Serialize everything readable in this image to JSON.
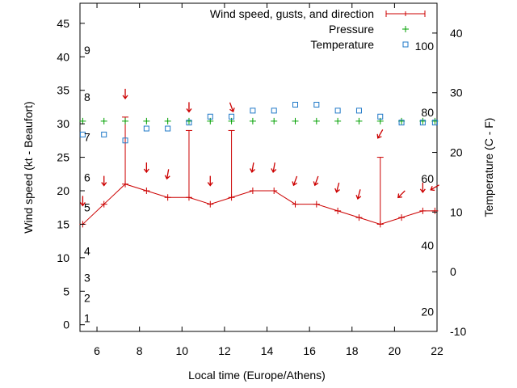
{
  "chart_data": {
    "type": "line",
    "title": "",
    "xlabel": "Local time (Europe/Athens)",
    "ylabel_left": "Wind speed (kt - Beaufort)",
    "ylabel_right": "Temperature (C - F)",
    "x_range": [
      5.2,
      22
    ],
    "y_left_range": [
      -1,
      48
    ],
    "y_right_range": [
      -10,
      45
    ],
    "x_ticks": [
      6,
      8,
      10,
      12,
      14,
      16,
      18,
      20,
      22
    ],
    "y_left_ticks": [
      0,
      5,
      10,
      15,
      20,
      25,
      30,
      35,
      40,
      45
    ],
    "y_right_ticks": [
      -10,
      0,
      10,
      20,
      30,
      40
    ],
    "beaufort_labels": [
      {
        "text": "1",
        "y": 1
      },
      {
        "text": "2",
        "y": 4
      },
      {
        "text": "3",
        "y": 7
      },
      {
        "text": "4",
        "y": 11
      },
      {
        "text": "5",
        "y": 17.5
      },
      {
        "text": "6",
        "y": 22
      },
      {
        "text": "7",
        "y": 28
      },
      {
        "text": "8",
        "y": 34
      },
      {
        "text": "9",
        "y": 41
      }
    ],
    "fahrenheit_labels": [
      {
        "text": "20",
        "temp_c": -6.7
      },
      {
        "text": "40",
        "temp_c": 4.4
      },
      {
        "text": "60",
        "temp_c": 15.6
      },
      {
        "text": "80",
        "temp_c": 26.7
      },
      {
        "text": "100",
        "temp_c": 37.8
      }
    ],
    "grid": false,
    "legend_position": "top-right",
    "series": [
      {
        "name": "Wind speed, gusts, and direction",
        "color": "#cc0000",
        "axis": "left",
        "x": [
          5.33,
          6.33,
          7.33,
          8.33,
          9.33,
          10.33,
          11.33,
          12.33,
          13.33,
          14.33,
          15.33,
          16.33,
          17.33,
          18.33,
          19.33,
          20.33,
          21.33,
          21.9
        ],
        "y": [
          15,
          18,
          21,
          20,
          19,
          19,
          18,
          19,
          20,
          20,
          18,
          18,
          17,
          16,
          15,
          16,
          17,
          17
        ],
        "gusts": [
          null,
          null,
          31,
          null,
          null,
          29,
          null,
          29,
          null,
          null,
          null,
          null,
          null,
          null,
          25,
          null,
          null,
          null
        ],
        "direction_y": [
          18.5,
          21.5,
          34.5,
          23.5,
          22.5,
          32.5,
          21.5,
          32.5,
          23.5,
          23.5,
          21.5,
          21.5,
          20.5,
          19.5,
          28.5,
          19.5,
          20.5,
          20.5
        ],
        "direction_angle_deg": [
          0,
          0,
          0,
          0,
          10,
          0,
          0,
          340,
          10,
          10,
          20,
          20,
          15,
          15,
          30,
          45,
          0,
          60
        ]
      },
      {
        "name": "Pressure",
        "color": "#00a000",
        "axis": "left",
        "x": [
          5.33,
          6.33,
          7.33,
          8.33,
          9.33,
          10.33,
          11.33,
          12.33,
          13.33,
          14.33,
          15.33,
          16.33,
          17.33,
          18.33,
          19.33,
          20.33,
          21.33,
          21.9
        ],
        "y": [
          30.4,
          30.4,
          30.4,
          30.4,
          30.4,
          30.4,
          30.4,
          30.4,
          30.4,
          30.4,
          30.4,
          30.4,
          30.4,
          30.4,
          30.4,
          30.4,
          30.4,
          30.4
        ]
      },
      {
        "name": "Temperature",
        "color": "#1f78c8",
        "axis": "right",
        "x": [
          5.33,
          6.33,
          7.33,
          8.33,
          9.33,
          10.33,
          11.33,
          12.33,
          13.33,
          14.33,
          15.33,
          16.33,
          17.33,
          18.33,
          19.33,
          20.33,
          21.33,
          21.9
        ],
        "y": [
          23,
          23,
          22,
          24,
          24,
          25,
          26,
          26,
          27,
          27,
          28,
          28,
          27,
          27,
          26,
          25,
          25,
          25
        ]
      }
    ]
  }
}
